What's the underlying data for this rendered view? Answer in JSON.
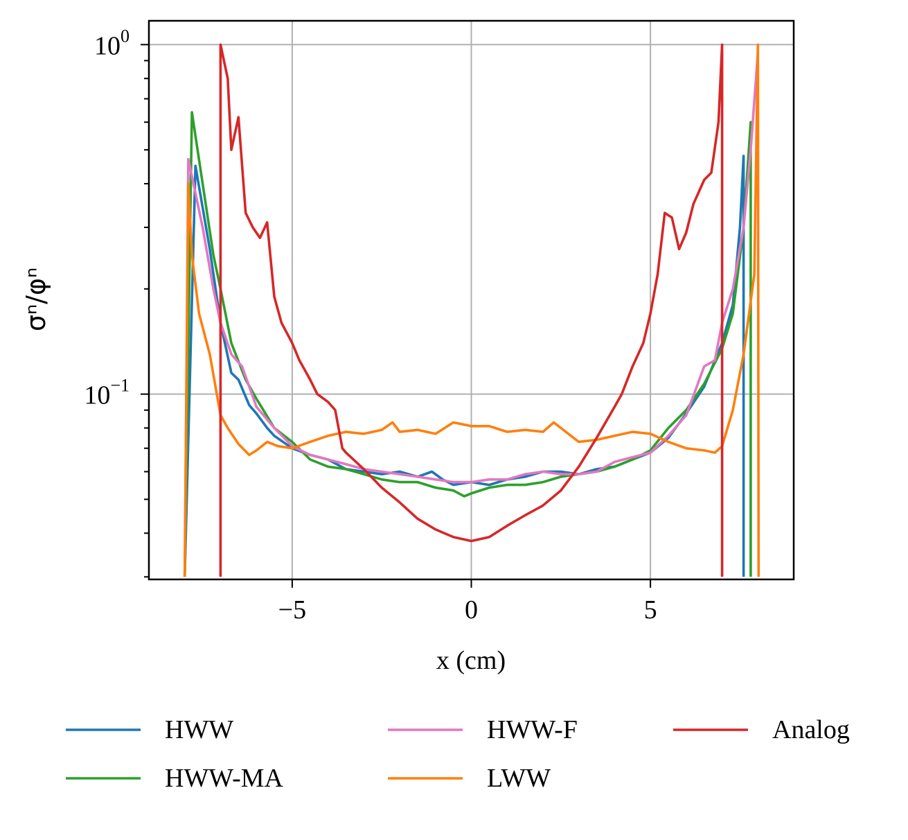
{
  "chart_data": {
    "type": "line",
    "title": "",
    "xlabel": "x (cm)",
    "ylabel": "σⁿ/φⁿ",
    "xscale": "linear",
    "yscale": "log",
    "xlim": [
      -9,
      9
    ],
    "ylim": [
      0.0295,
      1.17
    ],
    "xticks": [
      -5,
      0,
      5
    ],
    "xtick_labels": [
      "−5",
      "0",
      "5"
    ],
    "yticks": [
      0.1,
      1.0
    ],
    "ytick_labels": [
      {
        "base": "10",
        "exp": "−1"
      },
      {
        "base": "10",
        "exp": "0"
      }
    ],
    "grid": true,
    "legend": {
      "placement": "below",
      "columns": 3,
      "order": [
        "HWW",
        "HWW-MA",
        "HWW-F",
        "LWW",
        "Analog"
      ]
    },
    "series": [
      {
        "name": "HWW",
        "color": "#1f77b4",
        "x": [
          -8,
          -7.7,
          -7.3,
          -7,
          -6.7,
          -6.5,
          -6.2,
          -6,
          -5.7,
          -5.5,
          -5,
          -4.5,
          -4,
          -3.5,
          -3,
          -2.5,
          -2,
          -1.5,
          -1.1,
          -0.8,
          -0.5,
          0,
          0.5,
          1,
          1.5,
          2,
          2.5,
          3,
          3.5,
          4,
          4.5,
          5,
          5.5,
          6,
          6.5,
          7,
          7.3,
          7.5,
          7.6,
          7.6
        ],
        "y": [
          0.03,
          0.45,
          0.26,
          0.16,
          0.115,
          0.11,
          0.093,
          0.088,
          0.08,
          0.076,
          0.07,
          0.067,
          0.065,
          0.061,
          0.06,
          0.059,
          0.06,
          0.058,
          0.06,
          0.057,
          0.055,
          0.056,
          0.055,
          0.057,
          0.058,
          0.06,
          0.06,
          0.059,
          0.061,
          0.062,
          0.065,
          0.068,
          0.075,
          0.088,
          0.105,
          0.14,
          0.18,
          0.3,
          0.48,
          0.03
        ]
      },
      {
        "name": "HWW-MA",
        "color": "#2ca02c",
        "x": [
          -8,
          -7.8,
          -7.5,
          -7.2,
          -7,
          -6.7,
          -6.3,
          -6,
          -5.5,
          -5,
          -4.5,
          -4,
          -3.5,
          -3,
          -2.5,
          -2,
          -1.5,
          -1,
          -0.5,
          -0.2,
          0,
          0.5,
          1,
          1.5,
          2,
          2.5,
          3,
          3.5,
          4,
          4.5,
          5,
          5.5,
          6,
          6.5,
          7,
          7.3,
          7.6,
          7.8,
          7.8
        ],
        "y": [
          0.03,
          0.64,
          0.4,
          0.25,
          0.2,
          0.14,
          0.11,
          0.097,
          0.08,
          0.073,
          0.065,
          0.062,
          0.061,
          0.059,
          0.057,
          0.056,
          0.056,
          0.054,
          0.053,
          0.051,
          0.052,
          0.054,
          0.055,
          0.055,
          0.056,
          0.058,
          0.059,
          0.06,
          0.062,
          0.065,
          0.069,
          0.08,
          0.09,
          0.107,
          0.135,
          0.17,
          0.3,
          0.6,
          0.03
        ]
      },
      {
        "name": "HWW-F",
        "color": "#e377c2",
        "x": [
          -8,
          -7.9,
          -7.5,
          -7.2,
          -7,
          -6.7,
          -6.4,
          -6,
          -5.5,
          -5,
          -4.5,
          -4,
          -3.5,
          -3,
          -2.5,
          -2,
          -1.5,
          -1,
          -0.5,
          0,
          0.5,
          1,
          1.5,
          2,
          2.5,
          3,
          3.5,
          4,
          4.5,
          5,
          5.5,
          6,
          6.5,
          6.8,
          7,
          7.3,
          7.6,
          7.8,
          8.0
        ],
        "y": [
          0.03,
          0.47,
          0.3,
          0.2,
          0.16,
          0.13,
          0.12,
          0.092,
          0.08,
          0.071,
          0.067,
          0.065,
          0.063,
          0.061,
          0.06,
          0.059,
          0.058,
          0.057,
          0.056,
          0.056,
          0.057,
          0.057,
          0.059,
          0.06,
          0.059,
          0.059,
          0.06,
          0.064,
          0.066,
          0.068,
          0.076,
          0.087,
          0.12,
          0.125,
          0.16,
          0.2,
          0.3,
          0.5,
          0.95
        ]
      },
      {
        "name": "LWW",
        "color": "#ff7f0e",
        "x": [
          -8,
          -7.9,
          -7.8,
          -7.6,
          -7.3,
          -7,
          -6.8,
          -6.5,
          -6.2,
          -6,
          -5.7,
          -5.4,
          -5,
          -4.5,
          -4,
          -3.5,
          -3,
          -2.5,
          -2.2,
          -2,
          -1.5,
          -1,
          -0.5,
          0,
          0.5,
          1,
          1.5,
          2,
          2.3,
          2.5,
          3,
          3.5,
          4,
          4.5,
          5,
          5.5,
          6,
          6.5,
          6.8,
          7,
          7.3,
          7.6,
          7.9,
          8,
          8.02
        ],
        "y": [
          0.03,
          0.4,
          0.25,
          0.17,
          0.13,
          0.087,
          0.08,
          0.072,
          0.067,
          0.069,
          0.073,
          0.071,
          0.07,
          0.073,
          0.076,
          0.078,
          0.077,
          0.079,
          0.083,
          0.078,
          0.079,
          0.077,
          0.083,
          0.081,
          0.081,
          0.078,
          0.079,
          0.078,
          0.083,
          0.08,
          0.073,
          0.074,
          0.076,
          0.078,
          0.077,
          0.073,
          0.07,
          0.069,
          0.068,
          0.071,
          0.09,
          0.13,
          0.22,
          1.0,
          0.03
        ]
      },
      {
        "name": "Analog",
        "color": "#d62728",
        "x": [
          -7,
          -7,
          -6.8,
          -6.7,
          -6.5,
          -6.3,
          -6.1,
          -5.9,
          -5.7,
          -5.5,
          -5.3,
          -5,
          -4.8,
          -4.5,
          -4.3,
          -4,
          -3.8,
          -3.6,
          -3.5,
          -3,
          -2.5,
          -2,
          -1.5,
          -1,
          -0.5,
          0,
          0.5,
          1,
          1.5,
          2,
          2.5,
          3,
          3.5,
          4,
          4.2,
          4.5,
          4.8,
          5,
          5.2,
          5.4,
          5.6,
          5.8,
          6,
          6.2,
          6.5,
          6.7,
          6.9,
          7,
          7
        ],
        "y": [
          0.03,
          1.0,
          0.8,
          0.5,
          0.62,
          0.33,
          0.3,
          0.28,
          0.31,
          0.19,
          0.16,
          0.14,
          0.125,
          0.11,
          0.1,
          0.095,
          0.09,
          0.07,
          0.068,
          0.061,
          0.054,
          0.049,
          0.044,
          0.041,
          0.039,
          0.038,
          0.039,
          0.042,
          0.045,
          0.048,
          0.053,
          0.062,
          0.075,
          0.092,
          0.1,
          0.12,
          0.14,
          0.17,
          0.22,
          0.33,
          0.32,
          0.26,
          0.29,
          0.35,
          0.41,
          0.43,
          0.6,
          1.0,
          0.03
        ]
      }
    ]
  }
}
